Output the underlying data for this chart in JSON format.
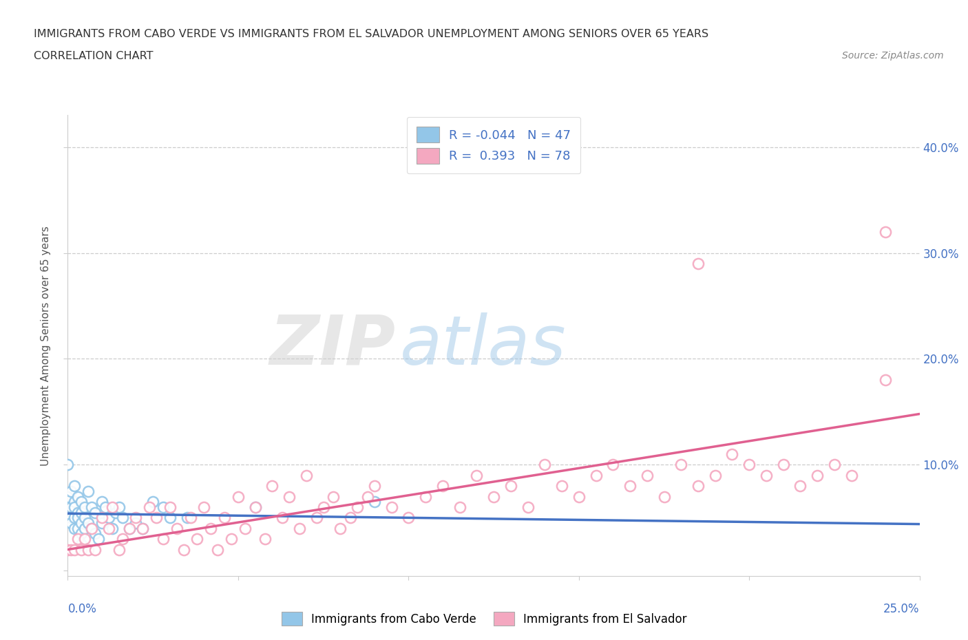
{
  "title_line1": "IMMIGRANTS FROM CABO VERDE VS IMMIGRANTS FROM EL SALVADOR UNEMPLOYMENT AMONG SENIORS OVER 65 YEARS",
  "title_line2": "CORRELATION CHART",
  "source_text": "Source: ZipAtlas.com",
  "ylabel": "Unemployment Among Seniors over 65 years",
  "xrange": [
    0.0,
    0.25
  ],
  "yrange": [
    -0.005,
    0.43
  ],
  "watermark_zip": "ZIP",
  "watermark_atlas": "atlas",
  "legend_R1": "-0.044",
  "legend_N1": "47",
  "legend_R2": "0.393",
  "legend_N2": "78",
  "color_cabo": "#93c6e8",
  "color_salvador": "#f4a8c0",
  "color_line_cabo": "#4472c4",
  "color_line_salvador": "#e06090",
  "cabo_trend_x0": 0.0,
  "cabo_trend_y0": 0.054,
  "cabo_trend_x1": 0.25,
  "cabo_trend_y1": 0.044,
  "sal_trend_x0": 0.0,
  "sal_trend_y0": 0.02,
  "sal_trend_x1": 0.25,
  "sal_trend_y1": 0.148,
  "cabo_x": [
    0.0,
    0.0,
    0.001,
    0.001,
    0.001,
    0.001,
    0.002,
    0.002,
    0.002,
    0.002,
    0.002,
    0.003,
    0.003,
    0.003,
    0.003,
    0.004,
    0.004,
    0.004,
    0.004,
    0.004,
    0.005,
    0.005,
    0.005,
    0.006,
    0.006,
    0.007,
    0.007,
    0.008,
    0.008,
    0.009,
    0.01,
    0.01,
    0.011,
    0.012,
    0.013,
    0.014,
    0.015,
    0.016,
    0.018,
    0.02,
    0.022,
    0.025,
    0.028,
    0.03,
    0.035,
    0.055,
    0.09
  ],
  "cabo_y": [
    0.1,
    0.07,
    0.075,
    0.06,
    0.05,
    0.045,
    0.08,
    0.065,
    0.06,
    0.05,
    0.04,
    0.07,
    0.055,
    0.05,
    0.04,
    0.065,
    0.055,
    0.045,
    0.035,
    0.025,
    0.06,
    0.05,
    0.04,
    0.075,
    0.045,
    0.06,
    0.04,
    0.055,
    0.035,
    0.03,
    0.065,
    0.045,
    0.06,
    0.05,
    0.04,
    0.055,
    0.06,
    0.05,
    0.04,
    0.045,
    0.04,
    0.065,
    0.06,
    0.05,
    0.05,
    0.06,
    0.065
  ],
  "sal_x": [
    0.0,
    0.001,
    0.002,
    0.003,
    0.004,
    0.005,
    0.006,
    0.007,
    0.008,
    0.01,
    0.012,
    0.013,
    0.015,
    0.016,
    0.018,
    0.02,
    0.022,
    0.024,
    0.026,
    0.028,
    0.03,
    0.032,
    0.034,
    0.036,
    0.038,
    0.04,
    0.042,
    0.044,
    0.046,
    0.048,
    0.05,
    0.052,
    0.055,
    0.058,
    0.06,
    0.063,
    0.065,
    0.068,
    0.07,
    0.073,
    0.075,
    0.078,
    0.08,
    0.083,
    0.085,
    0.088,
    0.09,
    0.095,
    0.1,
    0.105,
    0.11,
    0.115,
    0.12,
    0.125,
    0.13,
    0.135,
    0.14,
    0.145,
    0.15,
    0.155,
    0.16,
    0.165,
    0.17,
    0.175,
    0.18,
    0.185,
    0.19,
    0.195,
    0.2,
    0.205,
    0.21,
    0.215,
    0.22,
    0.225,
    0.23,
    0.24,
    0.185,
    0.24
  ],
  "sal_y": [
    0.02,
    0.02,
    0.02,
    0.03,
    0.02,
    0.03,
    0.02,
    0.04,
    0.02,
    0.05,
    0.04,
    0.06,
    0.02,
    0.03,
    0.04,
    0.05,
    0.04,
    0.06,
    0.05,
    0.03,
    0.06,
    0.04,
    0.02,
    0.05,
    0.03,
    0.06,
    0.04,
    0.02,
    0.05,
    0.03,
    0.07,
    0.04,
    0.06,
    0.03,
    0.08,
    0.05,
    0.07,
    0.04,
    0.09,
    0.05,
    0.06,
    0.07,
    0.04,
    0.05,
    0.06,
    0.07,
    0.08,
    0.06,
    0.05,
    0.07,
    0.08,
    0.06,
    0.09,
    0.07,
    0.08,
    0.06,
    0.1,
    0.08,
    0.07,
    0.09,
    0.1,
    0.08,
    0.09,
    0.07,
    0.1,
    0.08,
    0.09,
    0.11,
    0.1,
    0.09,
    0.1,
    0.08,
    0.09,
    0.1,
    0.09,
    0.18,
    0.29,
    0.32
  ]
}
